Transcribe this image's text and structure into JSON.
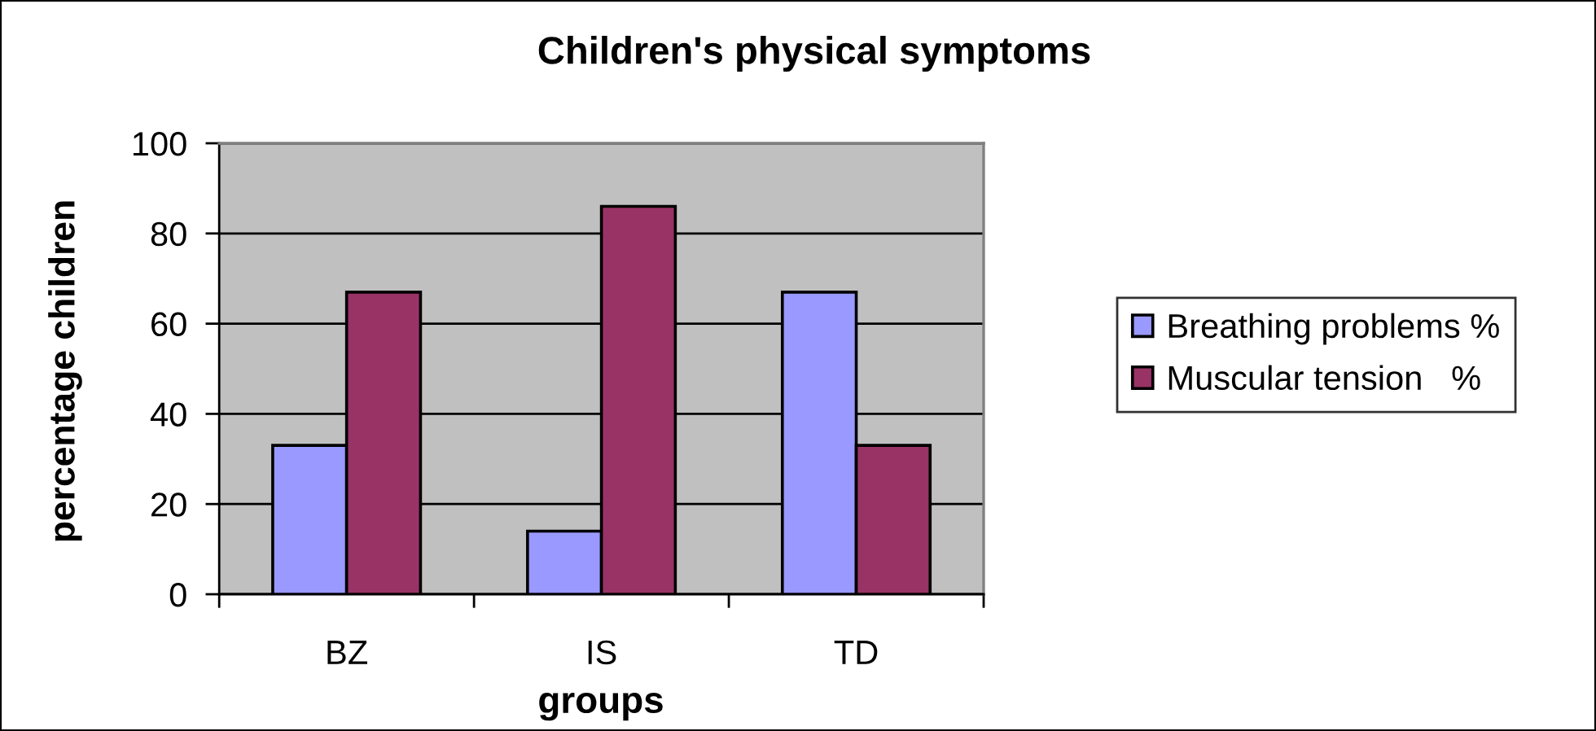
{
  "chart_data": {
    "type": "bar",
    "title": "Children's physical symptoms",
    "xlabel": "groups",
    "ylabel": "percentage children",
    "categories": [
      "BZ",
      "IS",
      "TD"
    ],
    "series": [
      {
        "name": "Breathing problems %",
        "color": "#9999ff",
        "values": [
          33,
          14,
          67
        ]
      },
      {
        "name": "Muscular tension   %",
        "color": "#993366",
        "values": [
          67,
          86,
          33
        ]
      }
    ],
    "ylim": [
      0,
      100
    ],
    "yticks": [
      0,
      20,
      40,
      60,
      80,
      100
    ],
    "grid": "y",
    "legend": "right"
  }
}
